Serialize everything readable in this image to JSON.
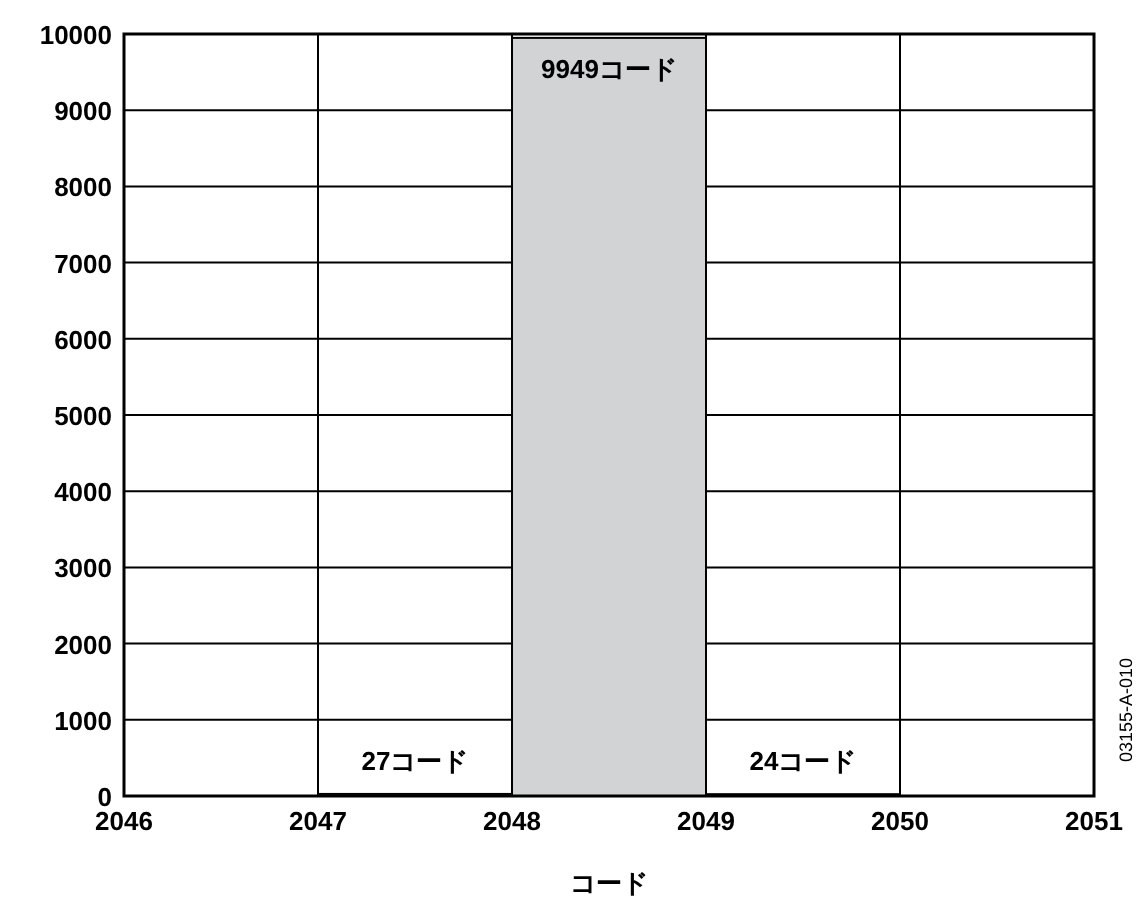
{
  "chart_data": {
    "type": "histogram",
    "xlabel": "コード",
    "bins": [
      2046,
      2047,
      2048,
      2049,
      2050,
      2051
    ],
    "values": [
      0,
      27,
      9949,
      24,
      0
    ],
    "value_labels": [
      null,
      "27コード",
      "9949コード",
      "24コード",
      null
    ],
    "color": "#d1d3d4",
    "xlim": [
      2046,
      2051
    ],
    "xticks": [
      2046,
      2047,
      2048,
      2049,
      2050,
      2051
    ],
    "ylim": [
      0,
      10000
    ],
    "yticks": [
      0,
      1000,
      2000,
      3000,
      4000,
      5000,
      6000,
      7000,
      8000,
      9000,
      10000
    ],
    "grid": true,
    "annotations": [
      "03155-A-010"
    ]
  }
}
